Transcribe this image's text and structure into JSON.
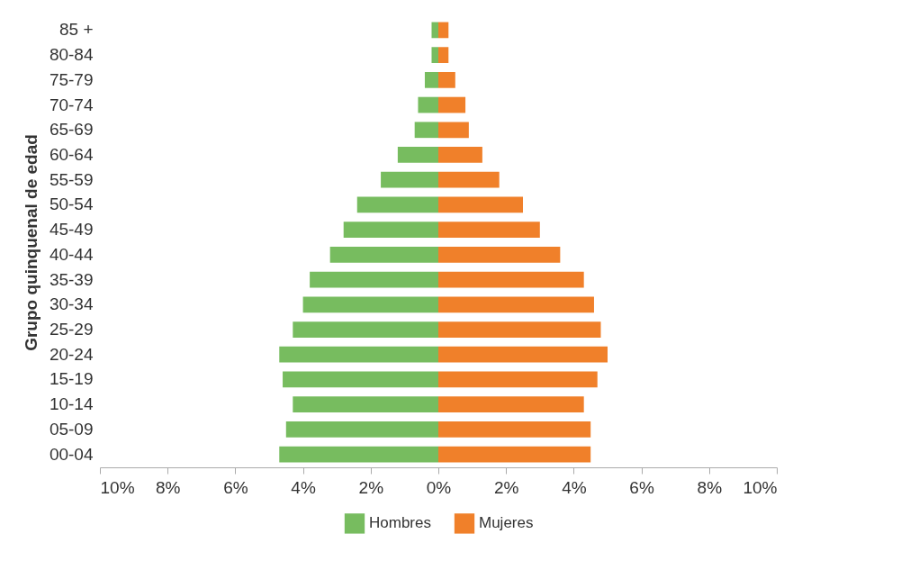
{
  "chart_data": {
    "type": "bar",
    "orientation": "horizontal",
    "ylabel": "Grupo quinquenal de edad",
    "categories": [
      "85 +",
      "80-84",
      "75-79",
      "70-74",
      "65-69",
      "60-64",
      "55-59",
      "50-54",
      "45-49",
      "40-44",
      "35-39",
      "30-34",
      "25-29",
      "20-24",
      "15-19",
      "10-14",
      "05-09",
      "00-04"
    ],
    "series": [
      {
        "name": "Hombres",
        "color": "#77bc5f",
        "values": [
          -0.2,
          -0.2,
          -0.4,
          -0.6,
          -0.7,
          -1.2,
          -1.7,
          -2.4,
          -2.8,
          -3.2,
          -3.8,
          -4.0,
          -4.3,
          -4.7,
          -4.6,
          -4.3,
          -4.5,
          -4.7
        ]
      },
      {
        "name": "Mujeres",
        "color": "#f0802a",
        "values": [
          0.3,
          0.3,
          0.5,
          0.8,
          0.9,
          1.3,
          1.8,
          2.5,
          3.0,
          3.6,
          4.3,
          4.6,
          4.8,
          5.0,
          4.7,
          4.3,
          4.5,
          4.5
        ]
      }
    ],
    "xlim": [
      -10,
      10
    ],
    "xticks": [
      {
        "value": -10,
        "label": "10%"
      },
      {
        "value": -8,
        "label": "8%"
      },
      {
        "value": -6,
        "label": "6%"
      },
      {
        "value": -4,
        "label": "4%"
      },
      {
        "value": -2,
        "label": "2%"
      },
      {
        "value": 0,
        "label": "0%"
      },
      {
        "value": 2,
        "label": "2%"
      },
      {
        "value": 4,
        "label": "4%"
      },
      {
        "value": 6,
        "label": "6%"
      },
      {
        "value": 8,
        "label": "8%"
      },
      {
        "value": 10,
        "label": "10%"
      }
    ],
    "legend": "bottom",
    "grid": false,
    "stacked": true
  }
}
